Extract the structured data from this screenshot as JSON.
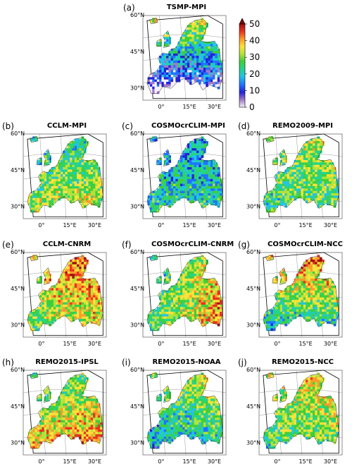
{
  "panels": [
    {
      "label": "(a)",
      "title": "TSMP-MPI",
      "scheme": 0
    },
    {
      "label": "(b)",
      "title": "CCLM-MPI",
      "scheme": 1
    },
    {
      "label": "(c)",
      "title": "COSMOcrCLIM-MPI",
      "scheme": 2
    },
    {
      "label": "(d)",
      "title": "REMO2009-MPI",
      "scheme": 3
    },
    {
      "label": "(e)",
      "title": "CCLM-CNRM",
      "scheme": 4
    },
    {
      "label": "(f)",
      "title": "COSMOcrCLIM-CNRM",
      "scheme": 5
    },
    {
      "label": "(g)",
      "title": "COSMOcrCLIM-NCC",
      "scheme": 6
    },
    {
      "label": "(h)",
      "title": "REMO2015-IPSL",
      "scheme": 7
    },
    {
      "label": "(i)",
      "title": "REMO2015-NOAA",
      "scheme": 8
    },
    {
      "label": "(j)",
      "title": "REMO2015-NCC",
      "scheme": 9
    }
  ],
  "axes": {
    "lat_labels": [
      "60°N",
      "45°N",
      "30°N"
    ],
    "lon_labels": [
      "0°",
      "15°E",
      "30°E"
    ]
  },
  "colorbar": {
    "ticks": [
      "0",
      "10",
      "20",
      "30",
      "40",
      "50"
    ],
    "min": 0,
    "max": 50,
    "extend": "max"
  },
  "colors": {
    "scale": [
      "#f6f0fb",
      "#9f7ac8",
      "#2222d8",
      "#1f73ff",
      "#22c4e6",
      "#25d48a",
      "#3fcf3a",
      "#b4e23a",
      "#ffe23a",
      "#ff9a2a",
      "#e8331f",
      "#9e1010"
    ]
  }
}
